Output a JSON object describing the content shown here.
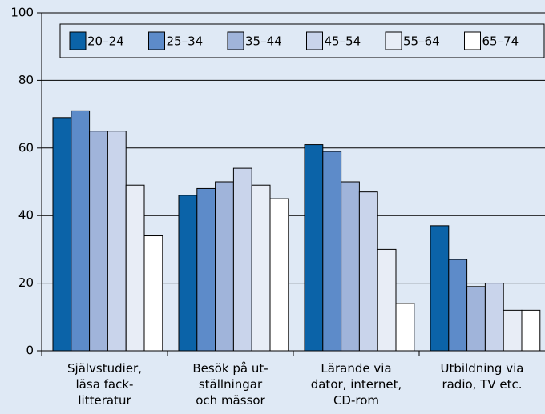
{
  "chart_data": {
    "type": "bar",
    "categories": [
      "Självstudier,\nläsa fack-\nlitteratur",
      "Besök på ut-\nställningar\noch mässor",
      "Lärande via\ndator, internet,\nCD-rom",
      "Utbildning via\nradio, TV etc."
    ],
    "series": [
      {
        "name": "20–24",
        "color": "#0b63a8",
        "values": [
          69,
          46,
          61,
          37
        ]
      },
      {
        "name": "25–34",
        "color": "#5d8bc9",
        "values": [
          71,
          48,
          59,
          27
        ]
      },
      {
        "name": "35–44",
        "color": "#a0b4da",
        "values": [
          65,
          50,
          50,
          19
        ]
      },
      {
        "name": "45–54",
        "color": "#c9d4eb",
        "values": [
          65,
          54,
          47,
          20
        ]
      },
      {
        "name": "55–64",
        "color": "#e8edf6",
        "values": [
          49,
          49,
          30,
          12
        ]
      },
      {
        "name": "65–74",
        "color": "#ffffff",
        "values": [
          34,
          45,
          14,
          12
        ]
      }
    ],
    "ylim": [
      0,
      100
    ],
    "yticks": [
      0,
      20,
      40,
      60,
      80,
      100
    ],
    "grid": true
  }
}
